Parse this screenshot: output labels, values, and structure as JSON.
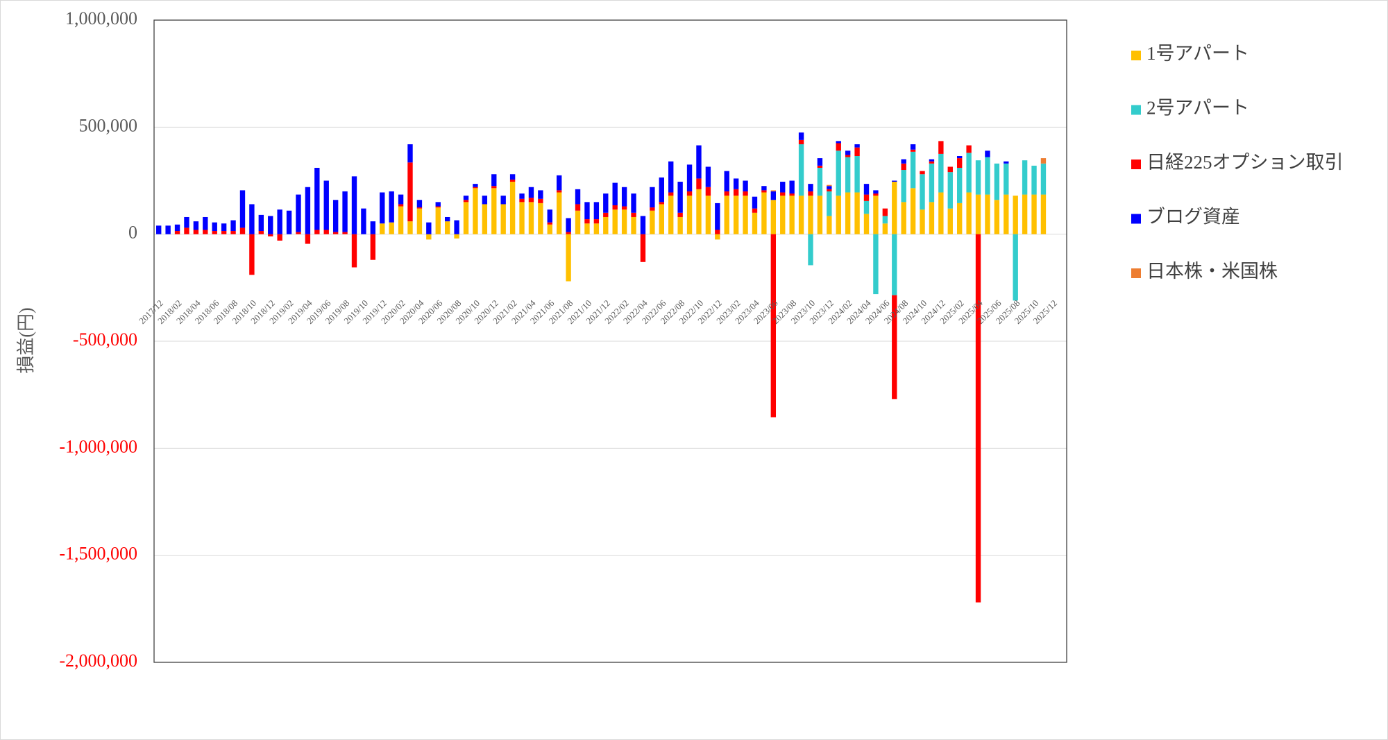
{
  "chart_data": {
    "type": "stacked_bar",
    "ylabel": "損益(円)",
    "ylim": [
      -2000000,
      1000000
    ],
    "yticks": [
      {
        "value": -2000000,
        "label": "-2,000,000"
      },
      {
        "value": -1500000,
        "label": "-1,500,000"
      },
      {
        "value": -1000000,
        "label": "-1,000,000"
      },
      {
        "value": -500000,
        "label": "-500,000"
      },
      0,
      {
        "value": 500000,
        "label": "500,000"
      },
      {
        "value": 1000000,
        "label": "1,000,000"
      }
    ],
    "grid": true,
    "tick_color": "#595959",
    "negative_tick_color": "#FF0000",
    "legend": "right",
    "categories": [
      "2017/12",
      null,
      "2018/02",
      null,
      "2018/04",
      null,
      "2018/06",
      null,
      "2018/08",
      null,
      "2018/10",
      null,
      "2018/12",
      null,
      "2019/02",
      null,
      "2019/04",
      null,
      "2019/06",
      null,
      "2019/08",
      null,
      "2019/10",
      null,
      "2019/12",
      null,
      "2020/02",
      null,
      "2020/04",
      null,
      "2020/06",
      null,
      "2020/08",
      null,
      "2020/10",
      null,
      "2020/12",
      null,
      "2021/02",
      null,
      "2021/04",
      null,
      "2021/06",
      null,
      "2021/08",
      null,
      "2021/10",
      null,
      "2021/12",
      null,
      "2022/02",
      null,
      "2022/04",
      null,
      "2022/06",
      null,
      "2022/08",
      null,
      "2022/10",
      null,
      "2022/12",
      null,
      "2023/02",
      null,
      "2023/04",
      null,
      "2023/06",
      null,
      "2023/08",
      null,
      "2023/10",
      null,
      "2023/12",
      null,
      "2024/02",
      null,
      "2024/04",
      null,
      "2024/06",
      null,
      "2024/08",
      null,
      "2024/10",
      null,
      "2024/12",
      null,
      "2025/02",
      null,
      "2025/04",
      null,
      "2025/06",
      null,
      "2025/08",
      null,
      "2025/10",
      null,
      "2025/12",
      null
    ],
    "series": [
      {
        "name": "1号アパート",
        "color": "#FFC000",
        "values": [
          0,
          0,
          0,
          0,
          0,
          0,
          0,
          0,
          0,
          0,
          0,
          0,
          0,
          0,
          0,
          0,
          0,
          0,
          0,
          0,
          0,
          0,
          0,
          0,
          50000,
          55000,
          130000,
          60000,
          120000,
          -25000,
          125000,
          60000,
          -20000,
          150000,
          215000,
          140000,
          215000,
          140000,
          245000,
          150000,
          150000,
          145000,
          45000,
          195000,
          -220000,
          110000,
          50000,
          50000,
          80000,
          115000,
          115000,
          80000,
          0,
          110000,
          140000,
          180000,
          80000,
          180000,
          210000,
          180000,
          -25000,
          180000,
          180000,
          180000,
          100000,
          195000,
          160000,
          180000,
          180000,
          180000,
          180000,
          180000,
          85000,
          180000,
          195000,
          195000,
          95000,
          180000,
          50000,
          245000,
          150000,
          215000,
          115000,
          150000,
          195000,
          120000,
          145000,
          195000,
          185000,
          185000,
          160000,
          185000,
          180000,
          185000,
          185000,
          185000,
          null,
          null
        ]
      },
      {
        "name": "2号アパート",
        "color": "#33CCCC",
        "values": [
          0,
          0,
          0,
          0,
          0,
          0,
          0,
          0,
          0,
          0,
          0,
          0,
          0,
          0,
          0,
          0,
          0,
          0,
          0,
          0,
          0,
          0,
          0,
          0,
          0,
          0,
          0,
          0,
          0,
          0,
          0,
          0,
          0,
          0,
          0,
          0,
          0,
          0,
          0,
          0,
          0,
          0,
          0,
          0,
          0,
          0,
          0,
          0,
          0,
          0,
          0,
          0,
          0,
          0,
          0,
          0,
          0,
          0,
          0,
          0,
          0,
          0,
          0,
          0,
          0,
          0,
          0,
          0,
          0,
          240000,
          -145000,
          130000,
          115000,
          210000,
          165000,
          170000,
          60000,
          -280000,
          35000,
          -285000,
          150000,
          170000,
          165000,
          180000,
          180000,
          170000,
          165000,
          185000,
          160000,
          175000,
          170000,
          145000,
          -310000,
          160000,
          135000,
          145000,
          null,
          null
        ]
      },
      {
        "name": "日経225オプション取引",
        "color": "#FF0000",
        "values": [
          0,
          0,
          15000,
          30000,
          20000,
          20000,
          15000,
          15000,
          15000,
          30000,
          -190000,
          15000,
          -10000,
          -30000,
          0,
          10000,
          -45000,
          20000,
          20000,
          10000,
          10000,
          -155000,
          0,
          -120000,
          0,
          0,
          10000,
          275000,
          5000,
          0,
          5000,
          0,
          0,
          10000,
          5000,
          0,
          10000,
          0,
          10000,
          15000,
          20000,
          20000,
          10000,
          10000,
          10000,
          30000,
          20000,
          20000,
          20000,
          20000,
          15000,
          20000,
          -130000,
          15000,
          10000,
          15000,
          20000,
          20000,
          50000,
          40000,
          20000,
          20000,
          30000,
          20000,
          20000,
          10000,
          -855000,
          15000,
          10000,
          20000,
          20000,
          10000,
          10000,
          35000,
          10000,
          40000,
          30000,
          10000,
          35000,
          -485000,
          30000,
          10000,
          15000,
          10000,
          60000,
          25000,
          45000,
          35000,
          -1720000,
          0,
          0,
          0,
          0,
          0,
          0,
          0,
          null,
          null
        ]
      },
      {
        "name": "ブログ資産",
        "color": "#0000FF",
        "values": [
          40000,
          40000,
          30000,
          50000,
          40000,
          60000,
          40000,
          35000,
          50000,
          175000,
          140000,
          75000,
          85000,
          115000,
          110000,
          175000,
          220000,
          290000,
          230000,
          150000,
          190000,
          270000,
          120000,
          60000,
          145000,
          145000,
          45000,
          85000,
          35000,
          55000,
          20000,
          20000,
          65000,
          20000,
          15000,
          40000,
          55000,
          40000,
          25000,
          25000,
          50000,
          40000,
          60000,
          70000,
          65000,
          70000,
          80000,
          80000,
          90000,
          105000,
          90000,
          90000,
          85000,
          95000,
          115000,
          145000,
          145000,
          125000,
          155000,
          95000,
          125000,
          95000,
          50000,
          50000,
          55000,
          20000,
          40000,
          50000,
          60000,
          35000,
          35000,
          35000,
          15000,
          10000,
          20000,
          15000,
          50000,
          15000,
          0,
          5000,
          20000,
          25000,
          0,
          10000,
          0,
          0,
          10000,
          0,
          0,
          30000,
          0,
          10000,
          0,
          0,
          0,
          0,
          null,
          null
        ]
      },
      {
        "name": "日本株・米国株",
        "color": "#ED7D31",
        "values": [
          0,
          0,
          0,
          0,
          0,
          0,
          0,
          0,
          0,
          0,
          0,
          0,
          0,
          0,
          0,
          0,
          0,
          0,
          0,
          0,
          0,
          0,
          0,
          0,
          0,
          0,
          0,
          0,
          0,
          0,
          0,
          0,
          0,
          0,
          0,
          0,
          0,
          0,
          0,
          0,
          0,
          0,
          0,
          0,
          0,
          0,
          0,
          0,
          0,
          0,
          0,
          0,
          0,
          0,
          0,
          0,
          0,
          0,
          0,
          0,
          0,
          0,
          0,
          0,
          0,
          0,
          5000,
          0,
          0,
          0,
          0,
          0,
          5000,
          0,
          0,
          0,
          0,
          0,
          0,
          0,
          0,
          0,
          0,
          0,
          0,
          0,
          0,
          0,
          0,
          0,
          0,
          0,
          0,
          0,
          0,
          25000,
          null,
          null
        ]
      }
    ]
  }
}
